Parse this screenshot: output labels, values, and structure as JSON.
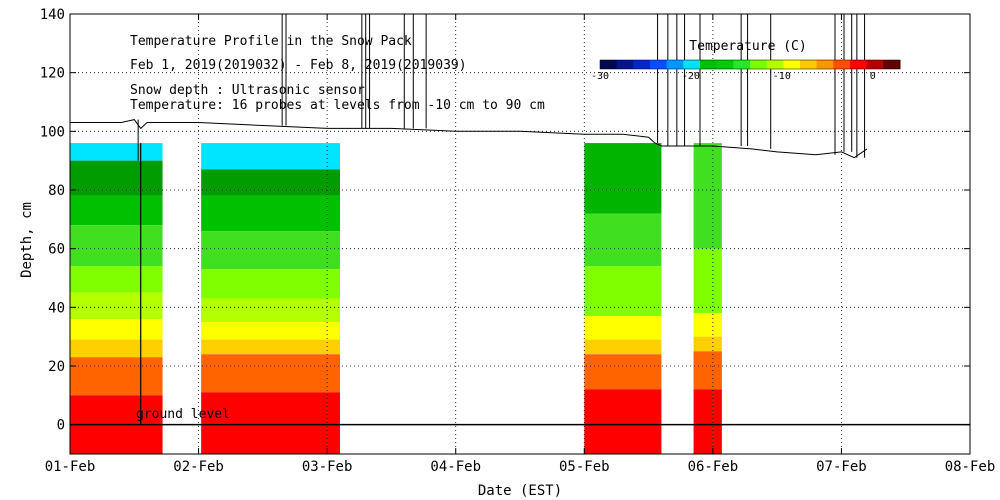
{
  "chart_data": {
    "type": "heatmap",
    "title": "Temperature Profile in the Snow Pack",
    "subtitle": "Feb  1, 2019(2019032) - Feb  8, 2019(2019039)",
    "annotations": [
      "Snow depth : Ultrasonic sensor",
      "Temperature: 16 probes at levels from -10 cm to 90 cm"
    ],
    "ground_label": "ground level",
    "xlabel": "Date (EST)",
    "ylabel": "Depth, cm",
    "x_ticks": [
      "01-Feb",
      "02-Feb",
      "03-Feb",
      "04-Feb",
      "05-Feb",
      "06-Feb",
      "07-Feb",
      "08-Feb"
    ],
    "xlim": [
      0,
      7
    ],
    "ylim": [
      -10,
      140
    ],
    "y_ticks": [
      0,
      20,
      40,
      60,
      80,
      100,
      120,
      140
    ],
    "grid": true,
    "colorbar": {
      "title": "Temperature (C)",
      "min": -30,
      "max": 3,
      "tick_labels": [
        {
          "value": -30,
          "label": "-30"
        },
        {
          "value": -20,
          "label": "-20"
        },
        {
          "value": -10,
          "label": "-10"
        },
        {
          "value": 0,
          "label": "0"
        }
      ],
      "colors": [
        "#000a50",
        "#00148c",
        "#0028c8",
        "#0050ff",
        "#0096ff",
        "#00e1ff",
        "#00be00",
        "#00cd00",
        "#28e628",
        "#78ff00",
        "#b4ff00",
        "#ffff00",
        "#ffc800",
        "#ff9600",
        "#ff5000",
        "#ff0000",
        "#b40000",
        "#640000"
      ]
    },
    "temperature_blocks": [
      {
        "x_start": 0.0,
        "x_end": 0.72,
        "top": 96,
        "bands": [
          {
            "top": 96,
            "bottom": 90,
            "color": "#00e5ff"
          },
          {
            "top": 90,
            "bottom": 78,
            "color": "#009c00"
          },
          {
            "top": 78,
            "bottom": 68,
            "color": "#00c000"
          },
          {
            "top": 68,
            "bottom": 54,
            "color": "#40e020"
          },
          {
            "top": 54,
            "bottom": 45,
            "color": "#80ff00"
          },
          {
            "top": 45,
            "bottom": 36,
            "color": "#b4ff00"
          },
          {
            "top": 36,
            "bottom": 29,
            "color": "#ffff00"
          },
          {
            "top": 29,
            "bottom": 23,
            "color": "#ffd000"
          },
          {
            "top": 23,
            "bottom": 10,
            "color": "#ff6400"
          },
          {
            "top": 10,
            "bottom": -10,
            "color": "#ff0000"
          }
        ]
      },
      {
        "x_start": 1.02,
        "x_end": 2.1,
        "top": 96,
        "bands": [
          {
            "top": 96,
            "bottom": 87,
            "color": "#00e5ff"
          },
          {
            "top": 87,
            "bottom": 78,
            "color": "#009c00"
          },
          {
            "top": 78,
            "bottom": 66,
            "color": "#00c000"
          },
          {
            "top": 66,
            "bottom": 53,
            "color": "#40e020"
          },
          {
            "top": 53,
            "bottom": 43,
            "color": "#80ff00"
          },
          {
            "top": 43,
            "bottom": 35,
            "color": "#b4ff00"
          },
          {
            "top": 35,
            "bottom": 29,
            "color": "#ffff00"
          },
          {
            "top": 29,
            "bottom": 24,
            "color": "#ffd000"
          },
          {
            "top": 24,
            "bottom": 11,
            "color": "#ff6400"
          },
          {
            "top": 11,
            "bottom": -10,
            "color": "#ff0000"
          }
        ]
      },
      {
        "x_start": 4.0,
        "x_end": 4.6,
        "top": 96,
        "bands": [
          {
            "top": 96,
            "bottom": 72,
            "color": "#00b400"
          },
          {
            "top": 72,
            "bottom": 54,
            "color": "#40e020"
          },
          {
            "top": 54,
            "bottom": 37,
            "color": "#80ff00"
          },
          {
            "top": 37,
            "bottom": 29,
            "color": "#ffff00"
          },
          {
            "top": 29,
            "bottom": 24,
            "color": "#ffd000"
          },
          {
            "top": 24,
            "bottom": 12,
            "color": "#ff6400"
          },
          {
            "top": 12,
            "bottom": -10,
            "color": "#ff0000"
          }
        ]
      },
      {
        "x_start": 4.85,
        "x_end": 5.07,
        "top": 96,
        "bands": [
          {
            "top": 96,
            "bottom": 60,
            "color": "#40e020"
          },
          {
            "top": 60,
            "bottom": 38,
            "color": "#80ff00"
          },
          {
            "top": 38,
            "bottom": 30,
            "color": "#ffff00"
          },
          {
            "top": 30,
            "bottom": 25,
            "color": "#ffd000"
          },
          {
            "top": 25,
            "bottom": 12,
            "color": "#ff6400"
          },
          {
            "top": 12,
            "bottom": -10,
            "color": "#ff0000"
          }
        ]
      }
    ],
    "snow_depth_series": {
      "name": "Snow depth",
      "x": [
        0.0,
        0.2,
        0.4,
        0.5,
        0.55,
        0.6,
        0.8,
        1.0,
        1.5,
        2.0,
        2.5,
        3.0,
        3.5,
        4.0,
        4.3,
        4.5,
        4.55,
        4.6,
        4.8,
        5.0,
        5.3,
        5.5,
        5.8,
        6.0,
        6.1,
        6.2
      ],
      "y": [
        103,
        103,
        103,
        104,
        101,
        103,
        103,
        103,
        102,
        101,
        101,
        100,
        100,
        99,
        99,
        98,
        96,
        95,
        95,
        95,
        94,
        93,
        92,
        93,
        91,
        94
      ],
      "spikes": [
        {
          "x": 0.53,
          "y": 90
        },
        {
          "x": 1.65,
          "y": 140
        },
        {
          "x": 1.68,
          "y": 140
        },
        {
          "x": 2.27,
          "y": 140
        },
        {
          "x": 2.3,
          "y": 140
        },
        {
          "x": 2.33,
          "y": 140
        },
        {
          "x": 2.6,
          "y": 140
        },
        {
          "x": 2.67,
          "y": 140
        },
        {
          "x": 2.77,
          "y": 140
        },
        {
          "x": 4.57,
          "y": 140
        },
        {
          "x": 4.65,
          "y": 140
        },
        {
          "x": 4.72,
          "y": 140
        },
        {
          "x": 4.78,
          "y": 140
        },
        {
          "x": 4.9,
          "y": 140
        },
        {
          "x": 5.22,
          "y": 140
        },
        {
          "x": 5.27,
          "y": 140
        },
        {
          "x": 5.45,
          "y": 140
        },
        {
          "x": 5.95,
          "y": 140
        },
        {
          "x": 6.02,
          "y": 140
        },
        {
          "x": 6.08,
          "y": 140
        },
        {
          "x": 6.12,
          "y": 140
        },
        {
          "x": 6.18,
          "y": 140
        }
      ]
    },
    "ground_line": 0,
    "probe_line_x": 0.55
  }
}
